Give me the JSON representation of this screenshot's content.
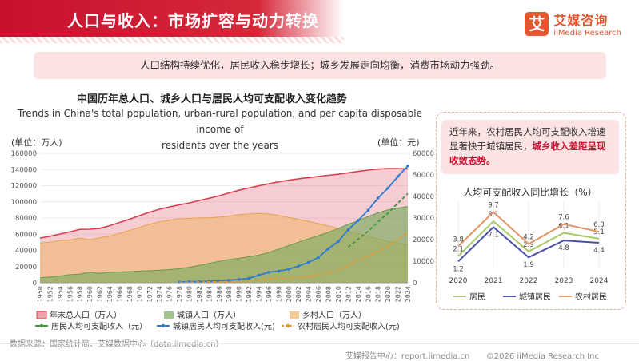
{
  "header": {
    "title": "人口与收入：市场扩容与动力转换"
  },
  "brand": {
    "name_cn": "艾媒咨询",
    "name_en": "iiMedia Research",
    "logo_char": "艾"
  },
  "summary": "人口结构持续优化，居民收入稳步增长；城乡发展走向均衡，消费市场动力强劲。",
  "main_chart": {
    "title_cn": "中国历年总人口、城乡人口与居民人均可支配收入变化趋势",
    "title_en_line1": "Trends in China's total population, urban-rural population, and per capita disposable income of",
    "title_en_line2": "residents over the years",
    "left_unit": "(单位：万人)",
    "right_unit": "(单位：元)",
    "legend": {
      "total": "年末总人口（万人）",
      "urban": "城镇人口（万人）",
      "rural": "乡村人口（万人）",
      "resident_income": "居民人均可支配收入（元）",
      "urban_income": "城镇居民人均可支配收入(元)",
      "rural_income": "农村居民人均可支配收入(元)"
    }
  },
  "side": {
    "note_pre": "近年来，农村居民人均可支配收入增速显著快于城镇居民，",
    "note_hl": "城乡收入差距呈现收敛态势。",
    "chart_title": "人均可支配收入同比增长（%）",
    "legend": {
      "resident": "居民",
      "urban": "城镇居民",
      "rural": "农村居民"
    }
  },
  "footer": {
    "source": "数据来源：国家统计局、艾媒数据中心（data.iimedia.cn）",
    "center": "艾媒报告中心：report.iimedia.cn",
    "copyright": "©2026  iiMedia Research  Inc"
  },
  "colors": {
    "accent": "#c8102e",
    "total": "#e05a6a",
    "urban": "#7aab5e",
    "rural": "#f0b46a",
    "resident_income": "#3a9a3a",
    "urban_income": "#2e7bd1",
    "rural_income": "#e89a2e",
    "side_resident": "#a9c96a",
    "side_urban": "#4b4fa8",
    "side_rural": "#e0956a"
  },
  "chart_data": [
    {
      "type": "area",
      "x": [
        1950,
        1952,
        1954,
        1956,
        1958,
        1960,
        1962,
        1964,
        1966,
        1968,
        1970,
        1972,
        1974,
        1976,
        1978,
        1980,
        1982,
        1984,
        1986,
        1988,
        1990,
        1992,
        1994,
        1996,
        1998,
        2000,
        2002,
        2004,
        2006,
        2008,
        2010,
        2012,
        2014,
        2016,
        2018,
        2020,
        2022,
        2024
      ],
      "x_tick_labels": [
        "1950",
        "1952",
        "1954",
        "1956",
        "1958",
        "1960",
        "1962",
        "1964",
        "1966",
        "1968",
        "1970",
        "1972",
        "1974",
        "1976",
        "1978",
        "1980",
        "1982",
        "1984",
        "1986",
        "1988",
        "1990",
        "1992",
        "1994",
        "1996",
        "1998",
        "2000",
        "2002",
        "2004",
        "2006",
        "2008",
        "2010",
        "2012",
        "2014",
        "2016",
        "2018",
        "2020",
        "2022",
        "2024"
      ],
      "y_left_lim": [
        0,
        160000
      ],
      "y_left_ticks": [
        0,
        20000,
        40000,
        60000,
        80000,
        100000,
        120000,
        140000,
        160000
      ],
      "y_right_lim": [
        0,
        60000
      ],
      "y_right_ticks": [
        0,
        10000,
        20000,
        30000,
        40000,
        50000,
        60000
      ],
      "series": [
        {
          "name": "年末总人口（万人）",
          "axis": "left",
          "values": [
            55196,
            57482,
            60266,
            62828,
            65994,
            66207,
            67295,
            70499,
            74542,
            78534,
            82992,
            87177,
            90859,
            93717,
            96259,
            98705,
            101654,
            104357,
            107507,
            111026,
            114333,
            117171,
            119850,
            122389,
            124761,
            126743,
            128453,
            129988,
            131448,
            132802,
            134091,
            135922,
            137646,
            139232,
            140541,
            141212,
            141175,
            140828
          ]
        },
        {
          "name": "城镇人口（万人）",
          "axis": "left",
          "values": [
            6169,
            7163,
            8249,
            10002,
            10721,
            13073,
            11659,
            12950,
            13313,
            13838,
            14424,
            14935,
            15595,
            16341,
            17245,
            19140,
            21480,
            24017,
            26366,
            28661,
            30195,
            32175,
            34169,
            37304,
            41608,
            45906,
            50212,
            54283,
            58288,
            62403,
            66978,
            72175,
            76738,
            81924,
            86433,
            90220,
            92071,
            94350
          ]
        },
        {
          "name": "乡村人口（万人）",
          "axis": "left",
          "values": [
            49027,
            50319,
            52017,
            52826,
            55273,
            53134,
            55636,
            57549,
            61229,
            64696,
            68568,
            72242,
            75264,
            77376,
            79014,
            79565,
            80174,
            80340,
            81141,
            82365,
            84138,
            84996,
            85681,
            85085,
            83153,
            80837,
            78241,
            75705,
            73160,
            70399,
            67113,
            63747,
            60908,
            57308,
            54108,
            50992,
            49104,
            46478
          ]
        },
        {
          "name": "居民人均可支配收入（元）",
          "axis": "right",
          "values": [
            null,
            null,
            null,
            null,
            null,
            null,
            null,
            null,
            null,
            null,
            null,
            null,
            null,
            null,
            null,
            null,
            null,
            null,
            null,
            null,
            null,
            null,
            null,
            null,
            null,
            null,
            null,
            null,
            null,
            null,
            null,
            16510,
            20167,
            23821,
            28228,
            32189,
            36883,
            41314
          ]
        },
        {
          "name": "城镇居民人均可支配收入(元)",
          "axis": "right",
          "values": [
            null,
            null,
            null,
            null,
            null,
            null,
            null,
            null,
            null,
            null,
            null,
            null,
            null,
            null,
            343,
            478,
            535,
            652,
            900,
            1181,
            1510,
            2027,
            3496,
            4839,
            5425,
            6280,
            7703,
            9422,
            11759,
            15781,
            19109,
            24565,
            28844,
            33616,
            39251,
            43834,
            49283,
            54188
          ]
        },
        {
          "name": "农村居民人均可支配收入(元)",
          "axis": "right",
          "values": [
            null,
            null,
            null,
            null,
            null,
            null,
            null,
            null,
            null,
            null,
            null,
            null,
            null,
            null,
            134,
            191,
            270,
            355,
            424,
            545,
            686,
            784,
            1221,
            1926,
            2162,
            2253,
            2476,
            2936,
            3587,
            4761,
            5919,
            7917,
            10489,
            12363,
            14617,
            17131,
            20133,
            23119
          ]
        }
      ]
    },
    {
      "type": "line",
      "title": "人均可支配收入同比增长（%）",
      "categories": [
        "2020",
        "2021",
        "2022",
        "2023",
        "2024"
      ],
      "series": [
        {
          "name": "居民",
          "values": [
            2.1,
            8.1,
            2.9,
            6.1,
            5.1
          ]
        },
        {
          "name": "城镇居民",
          "values": [
            1.2,
            7.1,
            1.9,
            4.8,
            4.4
          ]
        },
        {
          "name": "农村居民",
          "values": [
            3.8,
            9.7,
            4.2,
            7.6,
            6.3
          ]
        }
      ]
    }
  ]
}
